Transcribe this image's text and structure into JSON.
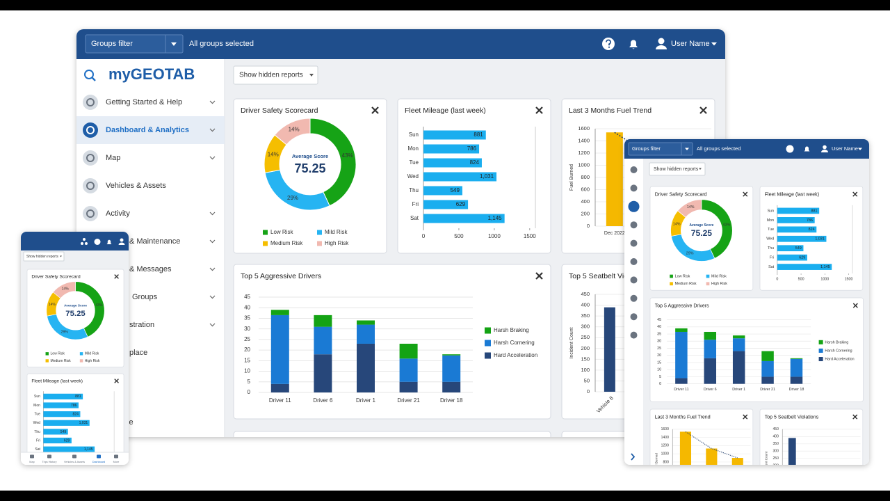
{
  "header": {
    "groups_filter": "Groups filter",
    "groups_selected": "All groups selected",
    "user_name": "User Name"
  },
  "logo": "myGEOTAB",
  "sidebar": [
    "Getting Started & Help",
    "Dashboard & Analytics",
    "Map",
    "Vehicles & Assets",
    "Activity",
    "& Maintenance",
    "& Messages",
    "Groups",
    "stration",
    "place",
    "se"
  ],
  "toolbar": {
    "show_hidden": "Show hidden reports"
  },
  "mobile_nav": [
    "Map",
    "Trips History",
    "Vehicles & Assets",
    "Dashboard",
    "More"
  ],
  "chart_data": [
    {
      "type": "donut",
      "title": "Driver Safety Scorecard",
      "center_label": "Average Score",
      "center_value": 75.25,
      "categories": [
        "Low Risk",
        "Mild Risk",
        "Medium Risk",
        "High Risk"
      ],
      "values": [
        43,
        29,
        14,
        14
      ],
      "value_labels": [
        "43%",
        "29%",
        "14%",
        "14%"
      ],
      "colors": [
        "#16a316",
        "#26b4f2",
        "#f5be00",
        "#f1b9b0"
      ]
    },
    {
      "type": "hbar",
      "title": "Fleet Mileage (last week)",
      "categories": [
        "Sun",
        "Mon",
        "Tue",
        "Wed",
        "Thu",
        "Fri",
        "Sat"
      ],
      "values": [
        881,
        786,
        824,
        1031,
        549,
        629,
        1145
      ],
      "value_labels": [
        "881",
        "786",
        "824",
        "1,031",
        "549",
        "629",
        "1,145"
      ],
      "color": "#1aaeef",
      "xlim": [
        0,
        1600
      ],
      "xticks": [
        0,
        500,
        1000,
        1500
      ]
    },
    {
      "type": "bar",
      "title": "Last 3 Months Fuel Trend",
      "ylabel": "Fuel Burned",
      "categories": [
        "Dec 2022",
        null,
        null
      ],
      "values": [
        1540,
        1130,
        900
      ],
      "color": "#f5b800",
      "ylim": [
        0,
        1600
      ],
      "yticks": [
        0,
        200,
        400,
        600,
        800,
        1000,
        1200,
        1400,
        1600
      ],
      "grid": true,
      "trendline": true
    },
    {
      "type": "stacked_bar",
      "title": "Top 5 Aggressive Drivers",
      "categories": [
        "Driver 11",
        "Driver 6",
        "Driver 1",
        "Driver 21",
        "Driver 18"
      ],
      "series": [
        {
          "name": "Hard Acceleration",
          "color": "#27477a",
          "values": [
            4,
            18,
            23,
            5,
            5
          ]
        },
        {
          "name": "Harsh Cornering",
          "color": "#1a7ad4",
          "values": [
            32.5,
            13,
            9,
            11,
            12.5
          ]
        },
        {
          "name": "Harsh Braking",
          "color": "#14a314",
          "values": [
            2.5,
            5.5,
            2,
            7,
            0.5
          ]
        }
      ],
      "ylim": [
        0,
        45
      ],
      "yticks": [
        0,
        5,
        10,
        15,
        20,
        25,
        30,
        35,
        40,
        45
      ],
      "grid": true
    },
    {
      "type": "bar",
      "title": "Top 5 Seatbelt Violations",
      "ylabel": "Incident Count",
      "categories": [
        "Vehicle 8"
      ],
      "values": [
        390
      ],
      "color": "#27477a",
      "ylim": [
        0,
        450
      ],
      "yticks": [
        0,
        50,
        100,
        150,
        200,
        250,
        300,
        350,
        400,
        450
      ],
      "grid": true
    }
  ]
}
